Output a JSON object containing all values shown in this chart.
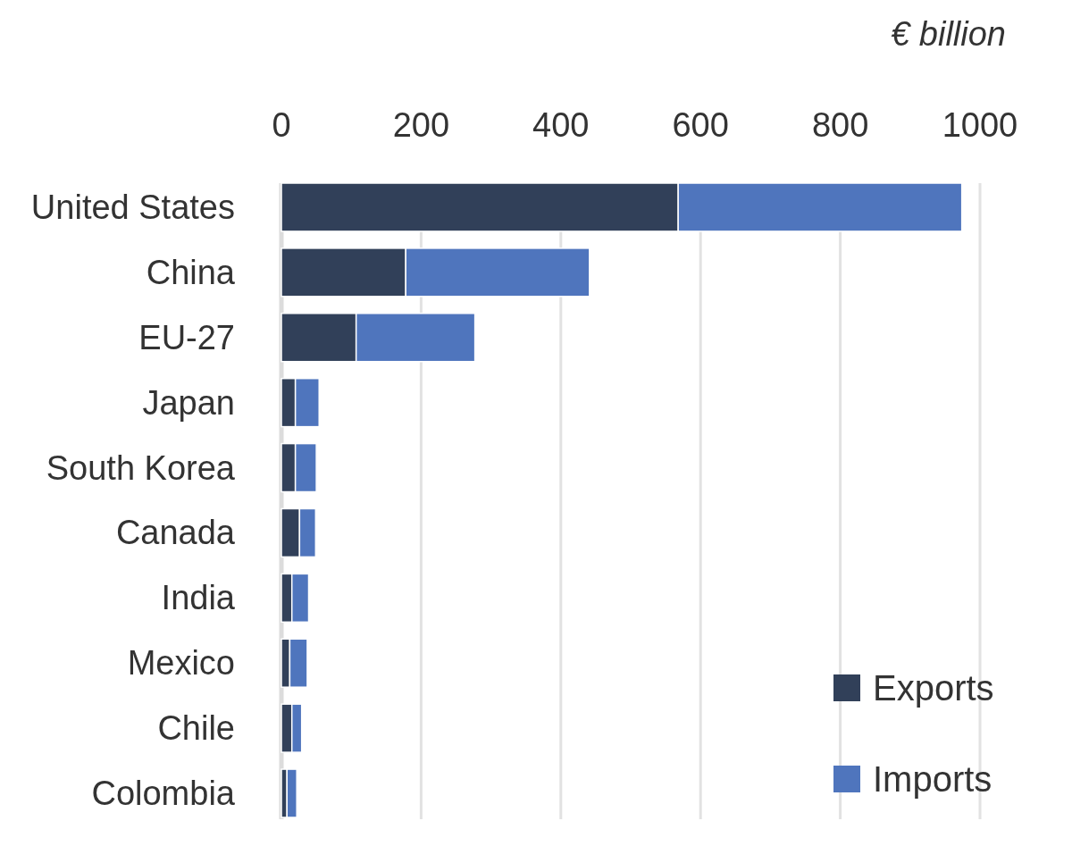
{
  "chart_data": {
    "type": "bar",
    "orientation": "horizontal",
    "stacked": true,
    "xlabel": "€ billion",
    "categories": [
      "United States",
      "China",
      "EU-27",
      "Japan",
      "South Korea",
      "Canada",
      "India",
      "Mexico",
      "Chile",
      "Colombia"
    ],
    "series": [
      {
        "name": "Exports",
        "color": "#314059",
        "values": [
          568,
          178,
          107,
          20,
          20,
          26,
          15,
          12,
          15,
          8
        ]
      },
      {
        "name": "Imports",
        "color": "#4f75bd",
        "values": [
          406,
          263,
          170,
          34,
          30,
          23,
          24,
          25,
          14,
          14
        ]
      }
    ],
    "xlim": [
      0,
      1000
    ],
    "xticks": [
      0,
      200,
      400,
      600,
      800,
      1000
    ],
    "grid": "x",
    "legend": "bottom right"
  }
}
